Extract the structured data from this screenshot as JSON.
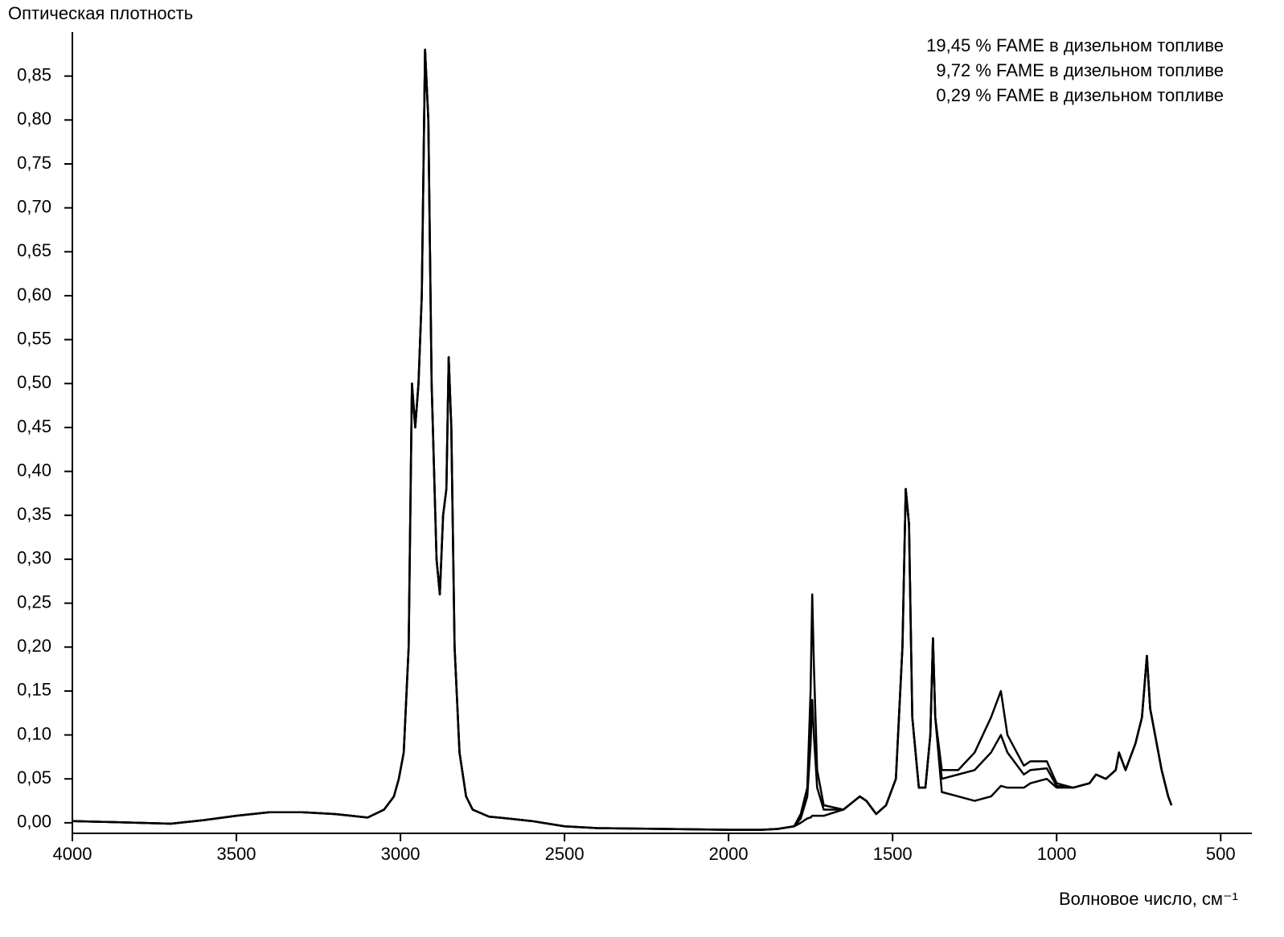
{
  "chart_data": {
    "type": "line",
    "ylabel": "Оптическая плотность",
    "xlabel": "Волновое число, см⁻¹",
    "x": [
      4000,
      3900,
      3800,
      3700,
      3600,
      3500,
      3400,
      3300,
      3200,
      3150,
      3100,
      3050,
      3020,
      3005,
      2990,
      2975,
      2965,
      2955,
      2945,
      2935,
      2925,
      2915,
      2905,
      2890,
      2880,
      2870,
      2860,
      2853,
      2845,
      2835,
      2820,
      2800,
      2780,
      2730,
      2700,
      2600,
      2500,
      2400,
      2200,
      2000,
      1900,
      1850,
      1800,
      1780,
      1760,
      1750,
      1745,
      1740,
      1730,
      1710,
      1650,
      1600,
      1580,
      1550,
      1520,
      1490,
      1470,
      1460,
      1450,
      1440,
      1420,
      1400,
      1385,
      1377,
      1370,
      1350,
      1300,
      1250,
      1200,
      1170,
      1150,
      1100,
      1080,
      1030,
      1000,
      950,
      900,
      880,
      850,
      820,
      810,
      790,
      760,
      740,
      725,
      715,
      700,
      680,
      660,
      650
    ],
    "series": [
      {
        "name": "19,45 % FAME в дизельном топливе",
        "color": "#000000",
        "values": [
          0.002,
          0.001,
          0,
          -0.001,
          0.003,
          0.008,
          0.012,
          0.012,
          0.01,
          0.008,
          0.006,
          0.015,
          0.03,
          0.05,
          0.08,
          0.2,
          0.5,
          0.45,
          0.5,
          0.6,
          0.88,
          0.8,
          0.5,
          0.3,
          0.26,
          0.35,
          0.38,
          0.53,
          0.45,
          0.2,
          0.08,
          0.03,
          0.015,
          0.007,
          0.006,
          0.002,
          -0.004,
          -0.006,
          -0.007,
          -0.008,
          -0.008,
          -0.007,
          -0.004,
          0.01,
          0.04,
          0.15,
          0.26,
          0.18,
          0.06,
          0.02,
          0.015,
          0.03,
          0.025,
          0.01,
          0.02,
          0.05,
          0.2,
          0.38,
          0.34,
          0.12,
          0.04,
          0.04,
          0.1,
          0.21,
          0.12,
          0.06,
          0.06,
          0.08,
          0.12,
          0.15,
          0.1,
          0.065,
          0.07,
          0.07,
          0.045,
          0.04,
          0.045,
          0.055,
          0.05,
          0.06,
          0.08,
          0.06,
          0.09,
          0.12,
          0.19,
          0.13,
          0.1,
          0.06,
          0.03,
          0.02
        ]
      },
      {
        "name": "9,72 % FAME в дизельном топливе",
        "color": "#000000",
        "values": [
          0.002,
          0.001,
          0,
          -0.001,
          0.003,
          0.008,
          0.012,
          0.012,
          0.01,
          0.008,
          0.006,
          0.015,
          0.03,
          0.05,
          0.08,
          0.2,
          0.5,
          0.45,
          0.5,
          0.6,
          0.88,
          0.8,
          0.5,
          0.3,
          0.26,
          0.35,
          0.38,
          0.53,
          0.45,
          0.2,
          0.08,
          0.03,
          0.015,
          0.007,
          0.006,
          0.002,
          -0.004,
          -0.006,
          -0.007,
          -0.008,
          -0.008,
          -0.007,
          -0.004,
          0.005,
          0.03,
          0.09,
          0.14,
          0.1,
          0.04,
          0.015,
          0.015,
          0.03,
          0.025,
          0.01,
          0.02,
          0.05,
          0.2,
          0.38,
          0.34,
          0.12,
          0.04,
          0.04,
          0.1,
          0.21,
          0.12,
          0.05,
          0.055,
          0.06,
          0.08,
          0.1,
          0.08,
          0.055,
          0.06,
          0.062,
          0.042,
          0.04,
          0.045,
          0.055,
          0.05,
          0.06,
          0.08,
          0.06,
          0.09,
          0.12,
          0.19,
          0.13,
          0.1,
          0.06,
          0.03,
          0.02
        ]
      },
      {
        "name": "0,29 % FAME в дизельном топливе",
        "color": "#000000",
        "values": [
          0.002,
          0.001,
          0,
          -0.001,
          0.003,
          0.008,
          0.012,
          0.012,
          0.01,
          0.008,
          0.006,
          0.015,
          0.03,
          0.05,
          0.08,
          0.2,
          0.5,
          0.45,
          0.5,
          0.6,
          0.88,
          0.8,
          0.5,
          0.3,
          0.26,
          0.35,
          0.38,
          0.53,
          0.45,
          0.2,
          0.08,
          0.03,
          0.015,
          0.007,
          0.006,
          0.002,
          -0.004,
          -0.006,
          -0.007,
          -0.008,
          -0.008,
          -0.007,
          -0.004,
          0,
          0.005,
          0.006,
          0.008,
          0.008,
          0.008,
          0.008,
          0.015,
          0.03,
          0.025,
          0.01,
          0.02,
          0.05,
          0.2,
          0.38,
          0.34,
          0.12,
          0.04,
          0.04,
          0.1,
          0.21,
          0.12,
          0.035,
          0.03,
          0.025,
          0.03,
          0.042,
          0.04,
          0.04,
          0.045,
          0.05,
          0.04,
          0.04,
          0.045,
          0.055,
          0.05,
          0.06,
          0.08,
          0.06,
          0.09,
          0.12,
          0.19,
          0.13,
          0.1,
          0.06,
          0.03,
          0.02
        ]
      }
    ],
    "xlim": [
      4000,
      410
    ],
    "ylim": [
      -0.012,
      0.9
    ],
    "xticks": [
      4000,
      3500,
      3000,
      2500,
      2000,
      1500,
      1000,
      500
    ],
    "yticks": [
      {
        "value": 0,
        "label": "0,00"
      },
      {
        "value": 0.05,
        "label": "0,05"
      },
      {
        "value": 0.1,
        "label": "0,10"
      },
      {
        "value": 0.15,
        "label": "0,15"
      },
      {
        "value": 0.2,
        "label": "0,20"
      },
      {
        "value": 0.25,
        "label": "0,25"
      },
      {
        "value": 0.3,
        "label": "0,30"
      },
      {
        "value": 0.35,
        "label": "0,35"
      },
      {
        "value": 0.4,
        "label": "0,40"
      },
      {
        "value": 0.45,
        "label": "0,45"
      },
      {
        "value": 0.5,
        "label": "0,50"
      },
      {
        "value": 0.55,
        "label": "0,55"
      },
      {
        "value": 0.6,
        "label": "0,60"
      },
      {
        "value": 0.65,
        "label": "0,65"
      },
      {
        "value": 0.7,
        "label": "0,70"
      },
      {
        "value": 0.75,
        "label": "0,75"
      },
      {
        "value": 0.8,
        "label": "0,80"
      },
      {
        "value": 0.85,
        "label": "0,85"
      }
    ],
    "grid": false,
    "legend": "top-right"
  }
}
